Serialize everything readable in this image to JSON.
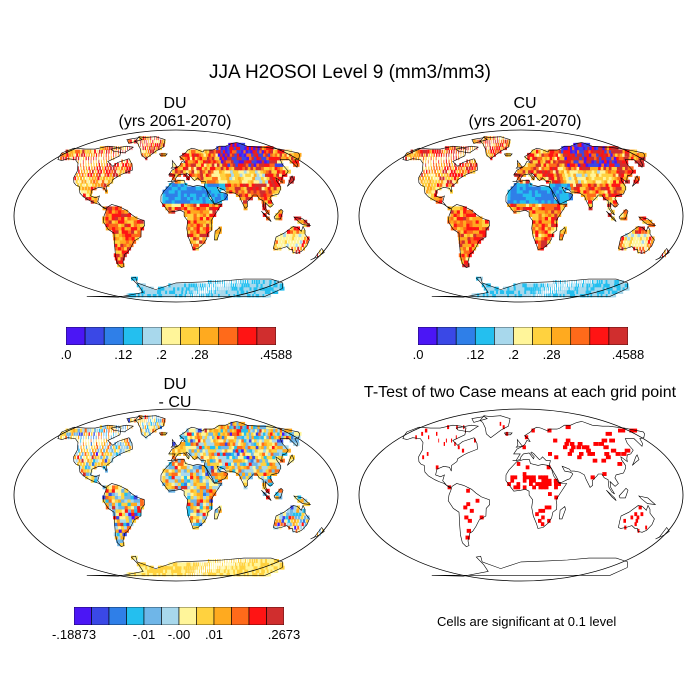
{
  "main_title": "JJA H2OSOI Level 9 (mm3/mm3)",
  "panels": [
    {
      "id": "du",
      "title_line1": "DU",
      "title_line2": "(yrs 2061-2070)",
      "colormap": "moisture"
    },
    {
      "id": "cu",
      "title_line1": "CU",
      "title_line2": "(yrs 2061-2070)",
      "colormap": "moisture"
    },
    {
      "id": "diff",
      "title_line1": "DU",
      "title_line2": "- CU",
      "colormap": "difference"
    },
    {
      "id": "ttest",
      "title_line1": "T-Test of two Case means at each grid point",
      "title_line2": "",
      "colormap": "significance"
    }
  ],
  "colorbars": {
    "moisture": {
      "colors": [
        "#4b16f5",
        "#3a48e6",
        "#2f7fe8",
        "#24bfef",
        "#a8d8ec",
        "#fff59a",
        "#ffd23f",
        "#ffaa1f",
        "#ff6a1a",
        "#ff1414",
        "#d02e2e"
      ],
      "tick_labels": [
        ".0",
        ".12",
        ".2",
        ".28",
        ".4588"
      ],
      "tick_box_index": [
        0,
        3,
        5,
        7,
        11
      ]
    },
    "difference": {
      "colors": [
        "#4b16f5",
        "#3a48e6",
        "#2f7fe8",
        "#24bfef",
        "#6fb6e8",
        "#a8d8ec",
        "#fff59a",
        "#ffd23f",
        "#ffaa1f",
        "#ff6a1a",
        "#ff1414",
        "#d02e2e"
      ],
      "tick_labels": [
        "-.18873",
        "-.01",
        "-.00",
        ".01",
        ".2673"
      ],
      "tick_box_index": [
        0,
        4,
        6,
        8,
        12
      ]
    }
  },
  "significance_color": "#ff0000",
  "footnote": "Cells are significant at 0.1 level"
}
